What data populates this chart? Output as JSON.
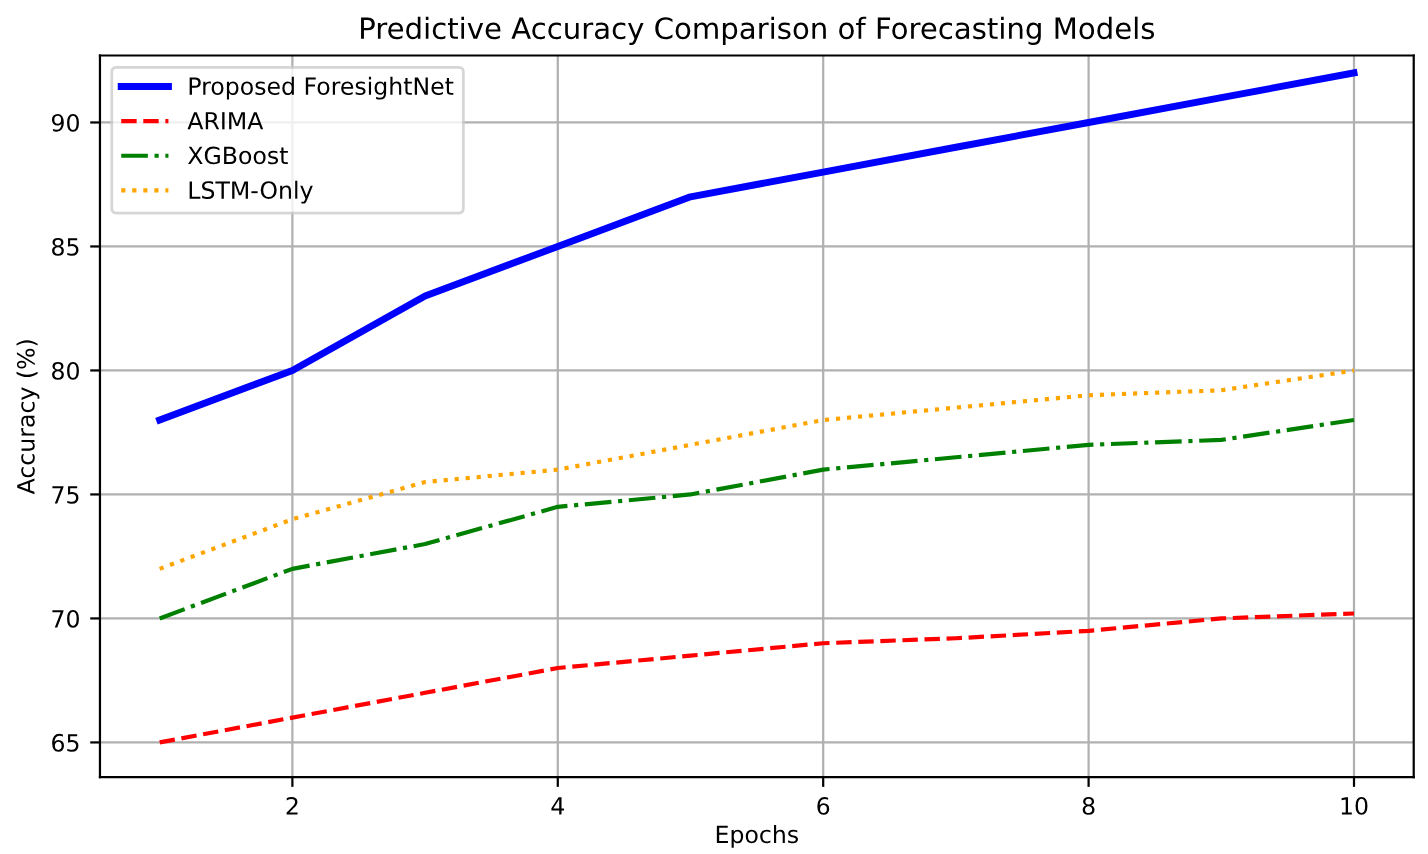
{
  "chart_data": {
    "type": "line",
    "title": "Predictive Accuracy Comparison of Forecasting Models",
    "xlabel": "Epochs",
    "ylabel": "Accuracy (%)",
    "x": [
      1,
      2,
      3,
      4,
      5,
      6,
      7,
      8,
      9,
      10
    ],
    "series": [
      {
        "name": "Proposed ForesightNet",
        "color": "#0000ff",
        "line_style": "solid",
        "values": [
          78,
          80,
          83,
          85,
          87,
          88,
          89,
          90,
          91,
          92
        ]
      },
      {
        "name": "ARIMA",
        "color": "#ff0000",
        "line_style": "dashed",
        "values": [
          65,
          66,
          67,
          68,
          68.5,
          69,
          69.2,
          69.5,
          70,
          70.2
        ]
      },
      {
        "name": "XGBoost",
        "color": "#008000",
        "line_style": "dashdot",
        "values": [
          70,
          72,
          73,
          74.5,
          75,
          76,
          76.5,
          77,
          77.2,
          78
        ]
      },
      {
        "name": "LSTM-Only",
        "color": "#ffa500",
        "line_style": "dotted",
        "values": [
          72,
          74,
          75.5,
          76,
          77,
          78,
          78.5,
          79,
          79.2,
          80
        ]
      }
    ],
    "xlim": [
      0.55,
      10.45
    ],
    "ylim": [
      63.6,
      92.7
    ],
    "xticks": [
      2,
      4,
      6,
      8,
      10
    ],
    "yticks": [
      65,
      70,
      75,
      80,
      85,
      90
    ],
    "grid": true,
    "legend": "top left",
    "marker": "none"
  }
}
